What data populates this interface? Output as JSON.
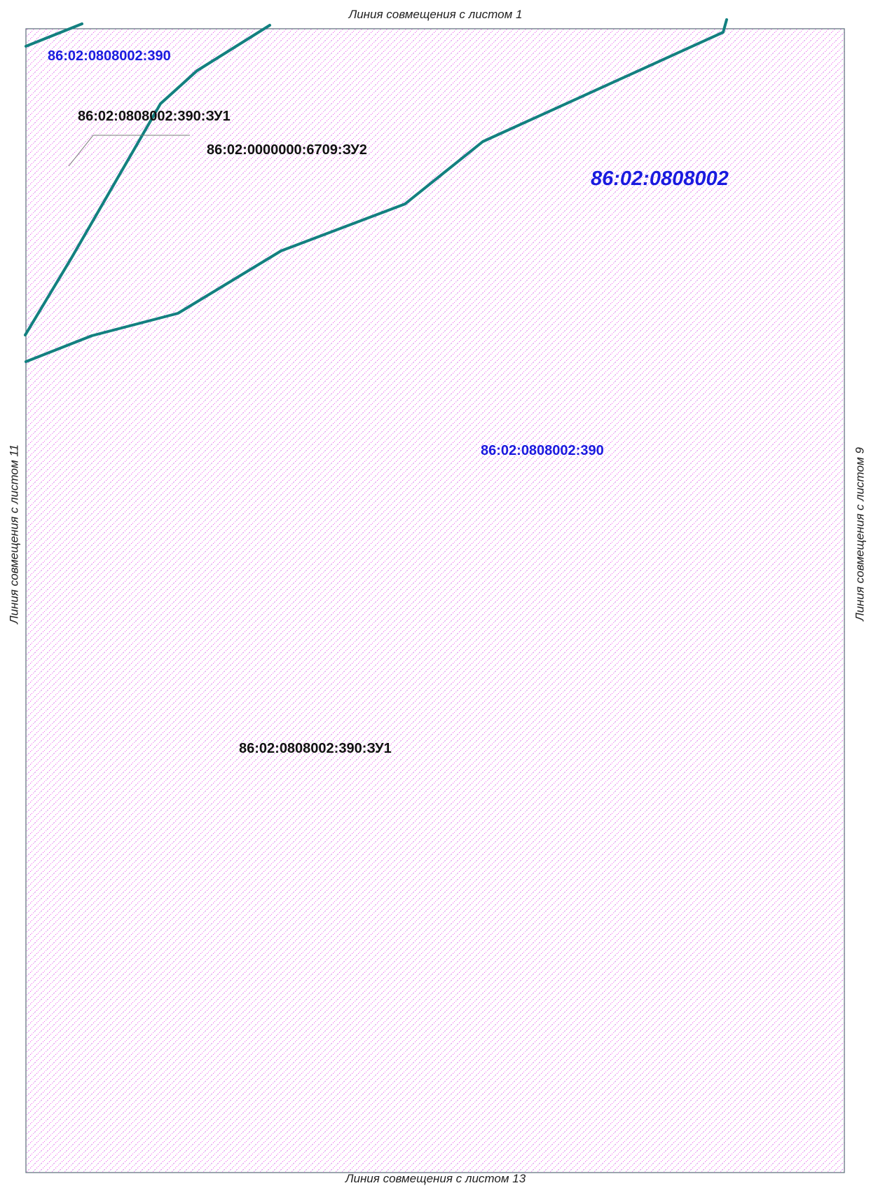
{
  "match_lines": {
    "top": "Линия совмещения с листом 1",
    "bottom": "Линия совмещения с листом 13",
    "left": "Линия совмещения с листом 11",
    "right": "Линия совмещения с листом 9"
  },
  "labels": {
    "parcel_top": "86:02:0808002:390",
    "zu1_top": "86:02:0808002:390:ЗУ1",
    "zu2": "86:02:0000000:6709:ЗУ2",
    "quarter": "86:02:0808002",
    "parcel_mid": "86:02:0808002:390",
    "zu1_mid": "86:02:0808002:390:ЗУ1"
  },
  "colors": {
    "hatch": "#e600e6",
    "boundary": "#138080",
    "frame": "#5a6a7a",
    "parcel_label": "#1a1adf",
    "zu_label": "#111111",
    "leader": "#7a7a7a"
  }
}
